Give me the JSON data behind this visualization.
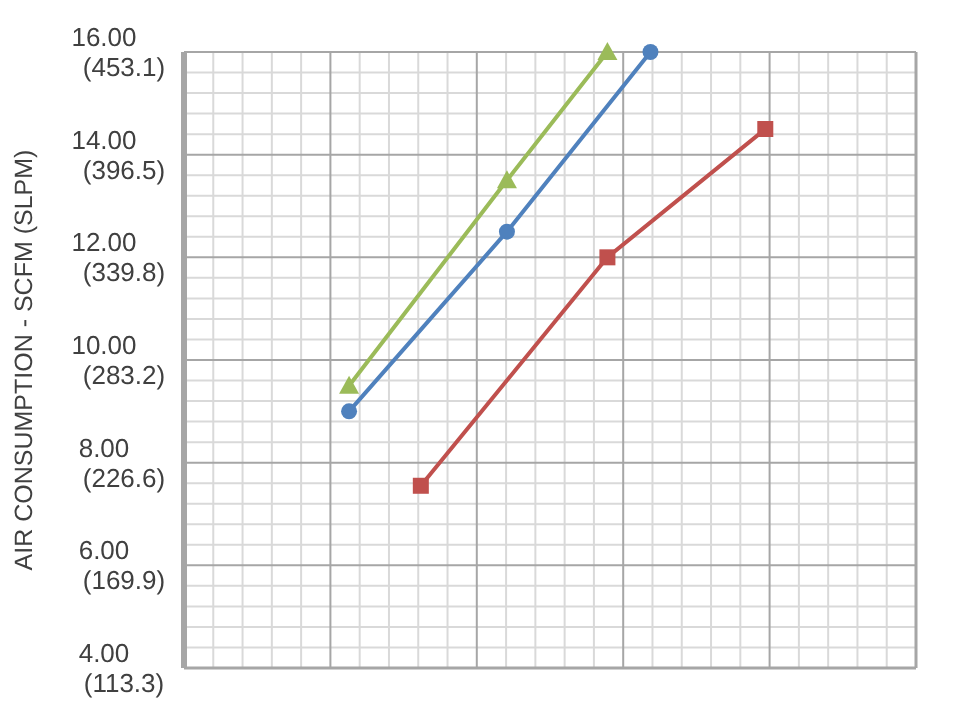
{
  "chart_data": {
    "type": "line",
    "ylabel": "AIR CONSUMPTION  -  SCFM  (SLPM)",
    "categories": [
      null,
      null,
      null,
      null,
      null,
      null,
      null,
      null,
      null,
      null,
      null,
      null,
      null,
      null,
      null,
      null,
      null,
      null,
      null,
      null,
      null,
      null,
      null,
      null,
      null,
      null,
      null,
      null,
      null,
      null,
      null,
      null,
      null,
      null,
      null,
      null,
      null,
      null,
      null,
      null,
      null,
      null,
      null,
      null,
      null,
      null,
      null,
      null,
      null,
      null,
      null
    ],
    "ylim": [
      4,
      16
    ],
    "yticks": [
      {
        "value": 4,
        "label": "4.00"
      },
      {
        "value": 6,
        "label": "6.00"
      },
      {
        "value": 8,
        "label": "8.00"
      },
      {
        "value": 10,
        "label": "10.00"
      },
      {
        "value": 12,
        "label": "12.00"
      },
      {
        "value": 14,
        "label": "14.00"
      },
      {
        "value": 16,
        "label": "16.00"
      }
    ],
    "y2lim": [
      113.3,
      453.1
    ],
    "y2ticks": [
      {
        "value": 113.3,
        "label": "(113.3)"
      },
      {
        "value": 169.9,
        "label": "(169.9)"
      },
      {
        "value": 226.6,
        "label": "(226.6)"
      },
      {
        "value": 283.2,
        "label": "(283.2)"
      },
      {
        "value": 339.8,
        "label": "(339.8)"
      },
      {
        "value": 396.5,
        "label": "(396.5)"
      },
      {
        "value": 453.1,
        "label": "(453.1)"
      }
    ],
    "grid": true,
    "tick_labels": "y",
    "series": [
      {
        "color": "#9bbb59",
        "marker": "triangle",
        "values": [
          null,
          null,
          null,
          null,
          null,
          null,
          null,
          null,
          null,
          null,
          null,
          9.5,
          null,
          null,
          null,
          null,
          null,
          null,
          null,
          null,
          null,
          null,
          13.5,
          null,
          null,
          null,
          null,
          null,
          null,
          16,
          null,
          null,
          null,
          null,
          null,
          null,
          null,
          null,
          null,
          null,
          null,
          null,
          null,
          null,
          null,
          null,
          null,
          null,
          null,
          null,
          null
        ]
      },
      {
        "color": "#4f81bd",
        "marker": "circle",
        "values": [
          null,
          null,
          null,
          null,
          null,
          null,
          null,
          null,
          null,
          null,
          null,
          9.0,
          null,
          null,
          null,
          null,
          null,
          null,
          null,
          null,
          null,
          null,
          12.5,
          null,
          null,
          null,
          null,
          null,
          null,
          null,
          null,
          null,
          16,
          null,
          null,
          null,
          null,
          null,
          null,
          null,
          null,
          null,
          null,
          null,
          null,
          null,
          null,
          null,
          null,
          null,
          null
        ]
      },
      {
        "color": "#c0504d",
        "marker": "square",
        "values": [
          null,
          null,
          null,
          null,
          null,
          null,
          null,
          null,
          null,
          null,
          null,
          null,
          null,
          null,
          null,
          null,
          7.55,
          null,
          null,
          null,
          null,
          null,
          null,
          null,
          null,
          null,
          null,
          null,
          null,
          12.0,
          null,
          null,
          null,
          null,
          null,
          null,
          null,
          null,
          null,
          null,
          14.5,
          null,
          null,
          null,
          null,
          null,
          null,
          null,
          null,
          null,
          null
        ]
      }
    ]
  }
}
